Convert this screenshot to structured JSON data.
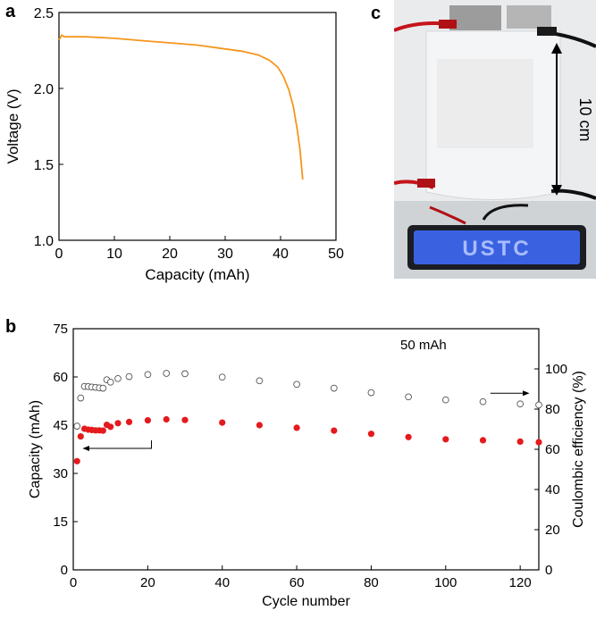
{
  "panels": {
    "a": "a",
    "b": "b",
    "c": "c"
  },
  "photo": {
    "height_label": "10 cm",
    "led_text": "USTC",
    "colors": {
      "wall": "#e7e9ea",
      "cylinder": "#f2f3f4",
      "led": "#3a62e0",
      "led_frame": "#1b1d22"
    }
  },
  "chart_data": [
    {
      "id": "a",
      "type": "line",
      "xlabel": "Capacity (mAh)",
      "ylabel": "Voltage (V)",
      "xlim": [
        0,
        50
      ],
      "ylim": [
        1.0,
        2.5
      ],
      "xticks": [
        0,
        10,
        20,
        30,
        40,
        50
      ],
      "yticks": [
        1.0,
        1.5,
        2.0,
        2.5
      ],
      "xtick_labels": [
        "0",
        "10",
        "20",
        "30",
        "40",
        "50"
      ],
      "ytick_labels": [
        "1.0",
        "1.5",
        "2.0",
        "2.5"
      ],
      "grid": false,
      "series": [
        {
          "color": "#f5961d",
          "x": [
            0,
            0.5,
            1,
            5,
            10,
            15,
            20,
            25,
            30,
            33,
            36,
            38,
            39.5,
            40.5,
            41.5,
            42.3,
            43,
            43.5,
            44
          ],
          "y": [
            2.32,
            2.35,
            2.34,
            2.34,
            2.33,
            2.315,
            2.3,
            2.285,
            2.26,
            2.245,
            2.22,
            2.185,
            2.14,
            2.08,
            1.99,
            1.88,
            1.73,
            1.6,
            1.4
          ]
        }
      ]
    },
    {
      "id": "b",
      "type": "scatter",
      "xlabel": "Cycle number",
      "ylabel": "Capacity (mAh)",
      "ylabel_right": "Coulombic efficiency (%)",
      "xlim": [
        0,
        125
      ],
      "ylim": [
        0,
        75
      ],
      "ylim_right": [
        0,
        120
      ],
      "xticks": [
        0,
        20,
        40,
        60,
        80,
        100,
        120
      ],
      "yticks": [
        0,
        15,
        30,
        45,
        60,
        75
      ],
      "yticks_right": [
        0,
        20,
        40,
        60,
        80,
        100
      ],
      "xtick_labels": [
        "0",
        "20",
        "40",
        "60",
        "80",
        "100",
        "120"
      ],
      "ytick_labels": [
        "0",
        "15",
        "30",
        "45",
        "60",
        "75"
      ],
      "ytick_right_labels": [
        "0",
        "20",
        "40",
        "60",
        "80",
        "100"
      ],
      "annotation": "50 mAh",
      "grid": false,
      "series": [
        {
          "axis": "left",
          "marker": "filled-circle",
          "color": "#e41a1c",
          "x": [
            1,
            2,
            3,
            4,
            5,
            6,
            7,
            8,
            9,
            10,
            12,
            15,
            20,
            25,
            30,
            40,
            50,
            60,
            70,
            80,
            90,
            100,
            110,
            120,
            125
          ],
          "y": [
            33.8,
            41.5,
            43.9,
            43.6,
            43.5,
            43.4,
            43.4,
            43.3,
            45.1,
            44.5,
            45.6,
            46.0,
            46.5,
            46.8,
            46.6,
            45.8,
            45.0,
            44.2,
            43.3,
            42.3,
            41.3,
            40.6,
            40.3,
            39.9,
            39.7
          ]
        },
        {
          "axis": "right",
          "marker": "open-circle",
          "color": "#555555",
          "x": [
            1,
            2,
            3,
            4,
            5,
            6,
            7,
            8,
            9,
            10,
            12,
            15,
            20,
            25,
            30,
            40,
            50,
            60,
            70,
            80,
            90,
            100,
            110,
            120,
            125
          ],
          "y": [
            71.5,
            85.5,
            91.3,
            91.2,
            91.0,
            90.8,
            90.6,
            90.4,
            94.6,
            93.4,
            95.2,
            96.2,
            97.2,
            97.8,
            97.6,
            95.9,
            94.1,
            92.3,
            90.4,
            88.2,
            86.1,
            84.6,
            83.7,
            82.6,
            82.1
          ]
        }
      ]
    }
  ]
}
